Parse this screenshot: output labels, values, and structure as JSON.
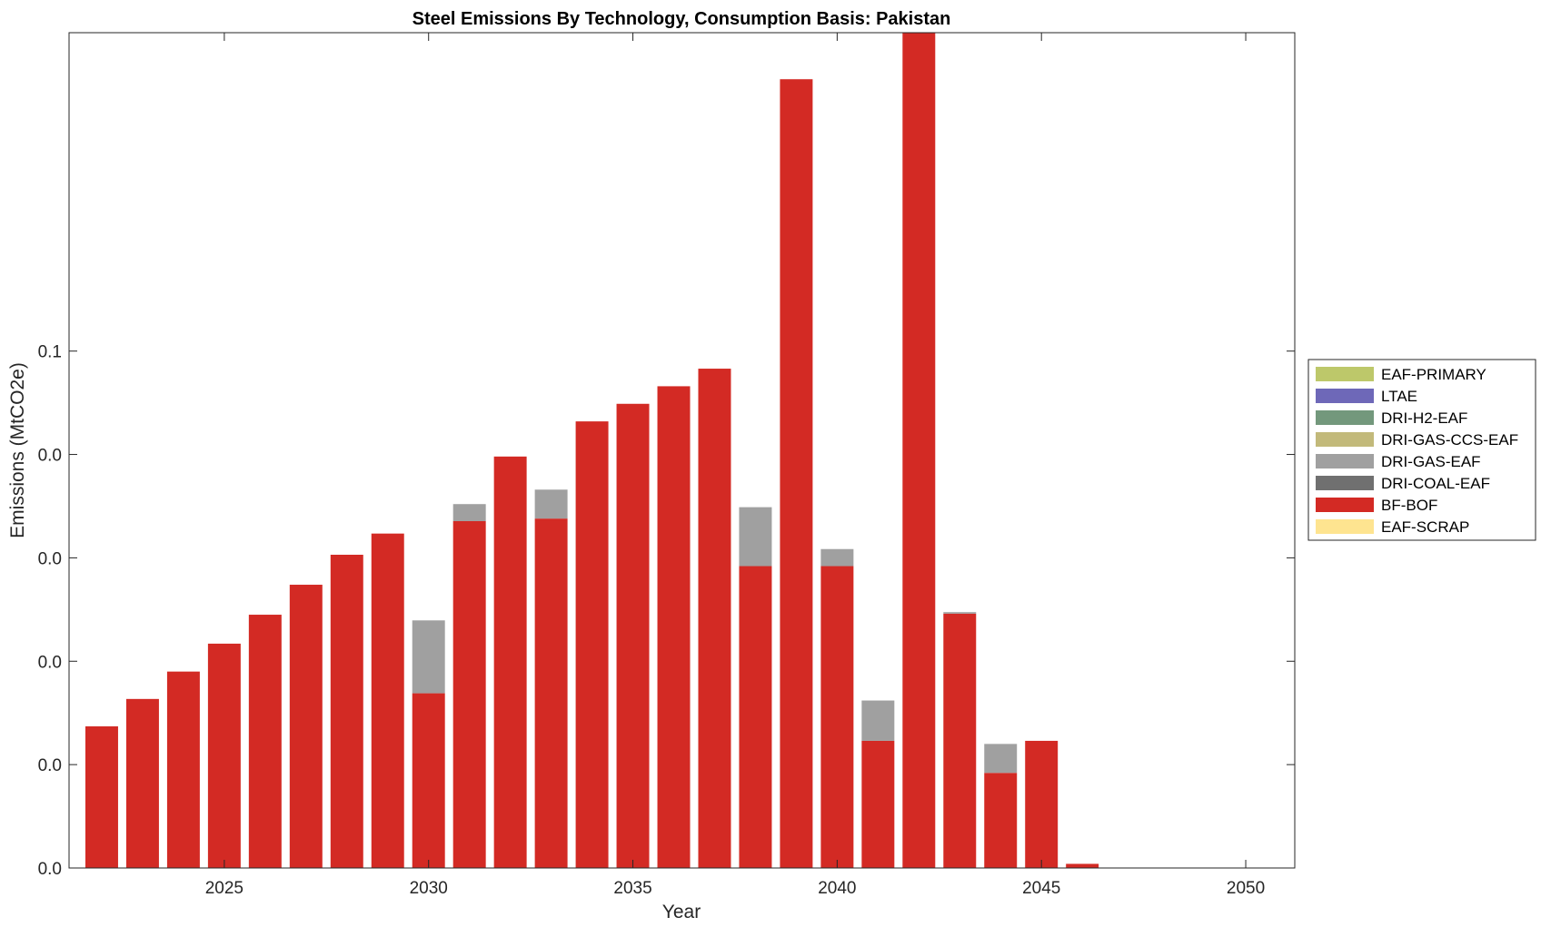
{
  "chart_data": {
    "type": "bar",
    "stacked": true,
    "title": "Steel Emissions By Technology, Consumption Basis: Pakistan",
    "xlabel": "Year",
    "ylabel": "Emissions (MtCO2e)",
    "x": [
      2022,
      2023,
      2024,
      2025,
      2026,
      2027,
      2028,
      2029,
      2030,
      2031,
      2032,
      2033,
      2034,
      2035,
      2036,
      2037,
      2038,
      2039,
      2040,
      2041,
      2042,
      2043,
      2044,
      2045,
      2046,
      2047,
      2048,
      2049,
      2050
    ],
    "xlim": [
      2021.2,
      2051.2
    ],
    "xticks": [
      2025,
      2030,
      2035,
      2040,
      2045,
      2050
    ],
    "ylim": [
      0,
      0.1616
    ],
    "yticks": [
      0,
      0.02,
      0.04,
      0.06,
      0.08,
      0.1
    ],
    "ytick_labels": [
      "0.0",
      "0.0",
      "0.0",
      "0.0",
      "0.0",
      "0.1"
    ],
    "series": [
      {
        "name": "EAF-SCRAP",
        "color": "#FEE490",
        "values": [
          0,
          0,
          0,
          0,
          0,
          0,
          0,
          0,
          0,
          0,
          0,
          0,
          0,
          0,
          0,
          0,
          0,
          0,
          0,
          0,
          0,
          0,
          0,
          0,
          0,
          0,
          0,
          0,
          0
        ]
      },
      {
        "name": "BF-BOF",
        "color": "#D32A24",
        "values": [
          0.0274,
          0.0327,
          0.038,
          0.0434,
          0.049,
          0.0548,
          0.0606,
          0.0647,
          0.0338,
          0.0671,
          0.0796,
          0.0676,
          0.0864,
          0.0898,
          0.0932,
          0.0966,
          0.0584,
          0.1526,
          0.0584,
          0.0246,
          0.1616,
          0.0492,
          0.0184,
          0.0246,
          0.0008,
          0,
          0,
          0,
          0
        ]
      },
      {
        "name": "DRI-COAL-EAF",
        "color": "#707070",
        "values": [
          0,
          0,
          0,
          0,
          0,
          0,
          0,
          0,
          0,
          0,
          0,
          0,
          0,
          0,
          0,
          0,
          0,
          0,
          0,
          0,
          0,
          0,
          0,
          0,
          0,
          0,
          0,
          0,
          0
        ]
      },
      {
        "name": "DRI-GAS-EAF",
        "color": "#A0A0A0",
        "values": [
          0,
          0,
          0,
          0,
          0,
          0,
          0,
          0,
          0.0141,
          0.0033,
          0,
          0.0056,
          0,
          0,
          0,
          0,
          0.0114,
          0,
          0.0033,
          0.0078,
          0,
          0.0003,
          0.0056,
          0,
          0,
          0,
          0,
          0,
          0
        ]
      },
      {
        "name": "DRI-GAS-CCS-EAF",
        "color": "#C2B97A",
        "values": [
          0,
          0,
          0,
          0,
          0,
          0,
          0,
          0,
          0,
          0,
          0,
          0,
          0,
          0,
          0,
          0,
          0,
          0,
          0,
          0,
          0,
          0,
          0,
          0,
          0,
          0,
          0,
          0,
          0
        ]
      },
      {
        "name": "DRI-H2-EAF",
        "color": "#73987C",
        "values": [
          0,
          0,
          0,
          0,
          0,
          0,
          0,
          0,
          0,
          0,
          0,
          0,
          0,
          0,
          0,
          0,
          0,
          0,
          0,
          0,
          0,
          0,
          0,
          0,
          0,
          0,
          0,
          0,
          0
        ]
      },
      {
        "name": "LTAE",
        "color": "#6E68B8",
        "values": [
          0,
          0,
          0,
          0,
          0,
          0,
          0,
          0,
          0,
          0,
          0,
          0,
          0,
          0,
          0,
          0,
          0,
          0,
          0,
          0,
          0,
          0,
          0,
          0,
          0,
          0,
          0,
          0,
          0
        ]
      },
      {
        "name": "EAF-PRIMARY",
        "color": "#BDC86A",
        "values": [
          0,
          0,
          0,
          0,
          0,
          0,
          0,
          0,
          0,
          0,
          0,
          0,
          0,
          0,
          0,
          0,
          0,
          0,
          0,
          0,
          0,
          0,
          0,
          0,
          0,
          0,
          0,
          0,
          0
        ]
      }
    ],
    "legend": {
      "placement": "right",
      "entries": [
        "EAF-PRIMARY",
        "LTAE",
        "DRI-H2-EAF",
        "DRI-GAS-CCS-EAF",
        "DRI-GAS-EAF",
        "DRI-COAL-EAF",
        "BF-BOF",
        "EAF-SCRAP"
      ]
    },
    "grid": false
  }
}
